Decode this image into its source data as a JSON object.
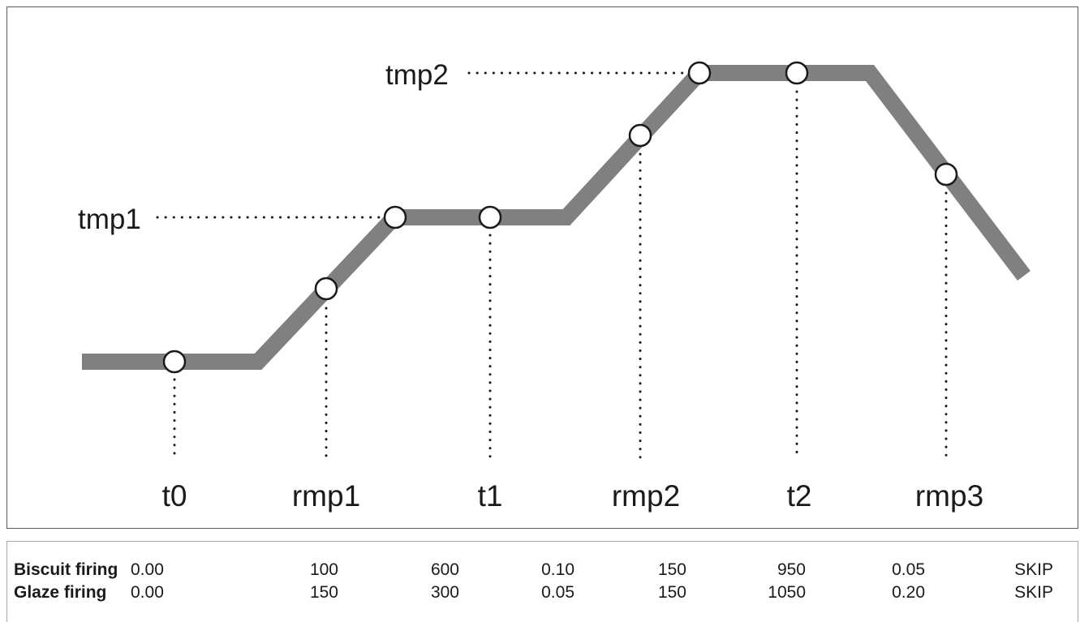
{
  "diagram": {
    "profile_color": "#808080",
    "point_labels": [
      "t0",
      "rmp1",
      "t1",
      "rmp2",
      "t2",
      "rmp3"
    ],
    "level_labels": [
      "tmp1",
      "tmp2"
    ]
  },
  "table": {
    "rows": [
      {
        "label": "Biscuit firing",
        "values": [
          "0.00",
          "100",
          "600",
          "0.10",
          "150",
          "950",
          "0.05",
          "SKIP"
        ]
      },
      {
        "label": "Glaze firing",
        "values": [
          "0.00",
          "150",
          "300",
          "0.05",
          "150",
          "1050",
          "0.20",
          "SKIP"
        ]
      }
    ]
  }
}
